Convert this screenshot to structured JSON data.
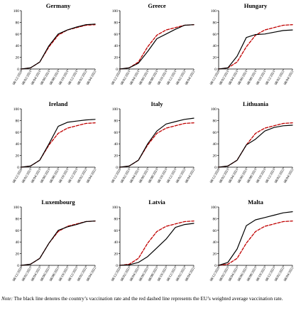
{
  "note": {
    "label": "Note:",
    "text": "The black line denotes the country’s vaccination rate and the red dashed line represents the EU’s weighted average vaccination rate."
  },
  "colors": {
    "country": "#000000",
    "eu": "#c00000",
    "axis": "#000000"
  },
  "chart_data": [
    {
      "type": "line",
      "title": "Germany",
      "categories": [
        "08/12/2020",
        "08/02/2021",
        "08/04/2021",
        "08/06/2021",
        "08/08/2021",
        "08/10/2021",
        "08/12/2021",
        "08/02/2022",
        "08/04/2022"
      ],
      "ylim": [
        0,
        100
      ],
      "yticks": [
        0,
        20,
        40,
        60,
        80,
        100
      ],
      "series": [
        {
          "role": "country",
          "values": [
            0,
            2,
            12,
            40,
            60,
            67,
            72,
            76,
            77
          ]
        },
        {
          "role": "eu",
          "values": [
            0,
            2,
            12,
            38,
            58,
            67,
            71,
            75,
            76
          ]
        }
      ]
    },
    {
      "type": "line",
      "title": "Greece",
      "categories": [
        "08/12/2020",
        "08/02/2021",
        "08/04/2021",
        "08/06/2021",
        "08/08/2021",
        "08/10/2021",
        "08/12/2021",
        "08/02/2022",
        "08/04/2022"
      ],
      "ylim": [
        0,
        100
      ],
      "yticks": [
        0,
        20,
        40,
        60,
        80,
        100
      ],
      "series": [
        {
          "role": "country",
          "values": [
            0,
            2,
            10,
            30,
            52,
            60,
            68,
            75,
            76
          ]
        },
        {
          "role": "eu",
          "values": [
            0,
            2,
            12,
            38,
            58,
            67,
            71,
            75,
            76
          ]
        }
      ]
    },
    {
      "type": "line",
      "title": "Hungary",
      "categories": [
        "08/12/2020",
        "08/02/2021",
        "08/04/2021",
        "08/06/2021",
        "08/08/2021",
        "08/10/2021",
        "08/12/2021",
        "08/02/2022",
        "08/04/2022"
      ],
      "ylim": [
        0,
        100
      ],
      "yticks": [
        0,
        20,
        40,
        60,
        80,
        100
      ],
      "series": [
        {
          "role": "country",
          "values": [
            0,
            2,
            22,
            54,
            59,
            60,
            63,
            66,
            67
          ]
        },
        {
          "role": "eu",
          "values": [
            0,
            2,
            12,
            38,
            58,
            67,
            71,
            75,
            76
          ]
        }
      ]
    },
    {
      "type": "line",
      "title": "Ireland",
      "categories": [
        "08/12/2020",
        "08/02/2021",
        "08/04/2021",
        "08/06/2021",
        "08/08/2021",
        "08/10/2021",
        "08/12/2021",
        "08/02/2022",
        "08/04/2022"
      ],
      "ylim": [
        0,
        100
      ],
      "yticks": [
        0,
        20,
        40,
        60,
        80,
        100
      ],
      "series": [
        {
          "role": "country",
          "values": [
            0,
            2,
            12,
            40,
            70,
            77,
            79,
            81,
            82
          ]
        },
        {
          "role": "eu",
          "values": [
            0,
            2,
            12,
            38,
            58,
            67,
            71,
            75,
            76
          ]
        }
      ]
    },
    {
      "type": "line",
      "title": "Italy",
      "categories": [
        "08/12/2020",
        "08/02/2021",
        "08/04/2021",
        "08/06/2021",
        "08/08/2021",
        "08/10/2021",
        "08/12/2021",
        "08/02/2022",
        "08/04/2022"
      ],
      "ylim": [
        0,
        100
      ],
      "yticks": [
        0,
        20,
        40,
        60,
        80,
        100
      ],
      "series": [
        {
          "role": "country",
          "values": [
            0,
            2,
            12,
            40,
            62,
            74,
            78,
            82,
            84
          ]
        },
        {
          "role": "eu",
          "values": [
            0,
            2,
            12,
            38,
            58,
            67,
            71,
            75,
            76
          ]
        }
      ]
    },
    {
      "type": "line",
      "title": "Lithuania",
      "categories": [
        "08/12/2020",
        "08/02/2021",
        "08/04/2021",
        "08/06/2021",
        "08/08/2021",
        "08/10/2021",
        "08/12/2021",
        "08/02/2022",
        "08/04/2022"
      ],
      "ylim": [
        0,
        100
      ],
      "yticks": [
        0,
        20,
        40,
        60,
        80,
        100
      ],
      "series": [
        {
          "role": "country",
          "values": [
            0,
            2,
            12,
            38,
            48,
            62,
            68,
            71,
            72
          ]
        },
        {
          "role": "eu",
          "values": [
            0,
            2,
            12,
            38,
            58,
            67,
            71,
            75,
            76
          ]
        }
      ]
    },
    {
      "type": "line",
      "title": "Luxembourg",
      "categories": [
        "08/12/2020",
        "08/02/2021",
        "08/04/2021",
        "08/06/2021",
        "08/08/2021",
        "08/10/2021",
        "08/12/2021",
        "08/02/2022",
        "08/04/2022"
      ],
      "ylim": [
        0,
        100
      ],
      "yticks": [
        0,
        20,
        40,
        60,
        80,
        100
      ],
      "series": [
        {
          "role": "country",
          "values": [
            0,
            2,
            12,
            38,
            60,
            66,
            70,
            75,
            76
          ]
        },
        {
          "role": "eu",
          "values": [
            0,
            2,
            12,
            38,
            58,
            67,
            71,
            75,
            76
          ]
        }
      ]
    },
    {
      "type": "line",
      "title": "Latvia",
      "categories": [
        "08/12/2020",
        "08/02/2021",
        "08/04/2021",
        "08/06/2021",
        "08/08/2021",
        "08/10/2021",
        "08/12/2021",
        "08/02/2022",
        "08/04/2022"
      ],
      "ylim": [
        0,
        100
      ],
      "yticks": [
        0,
        20,
        40,
        60,
        80,
        100
      ],
      "series": [
        {
          "role": "country",
          "values": [
            0,
            1,
            5,
            15,
            30,
            45,
            65,
            70,
            72
          ]
        },
        {
          "role": "eu",
          "values": [
            0,
            2,
            12,
            38,
            58,
            67,
            71,
            75,
            76
          ]
        }
      ]
    },
    {
      "type": "line",
      "title": "Malta",
      "categories": [
        "08/12/2020",
        "08/02/2021",
        "08/04/2021",
        "08/06/2021",
        "08/08/2021",
        "08/10/2021",
        "08/12/2021",
        "08/02/2022",
        "08/04/2022"
      ],
      "ylim": [
        0,
        100
      ],
      "yticks": [
        0,
        20,
        40,
        60,
        80,
        100
      ],
      "series": [
        {
          "role": "country",
          "values": [
            0,
            5,
            28,
            68,
            78,
            82,
            86,
            90,
            92
          ]
        },
        {
          "role": "eu",
          "values": [
            0,
            2,
            12,
            38,
            58,
            67,
            71,
            75,
            76
          ]
        }
      ]
    }
  ]
}
